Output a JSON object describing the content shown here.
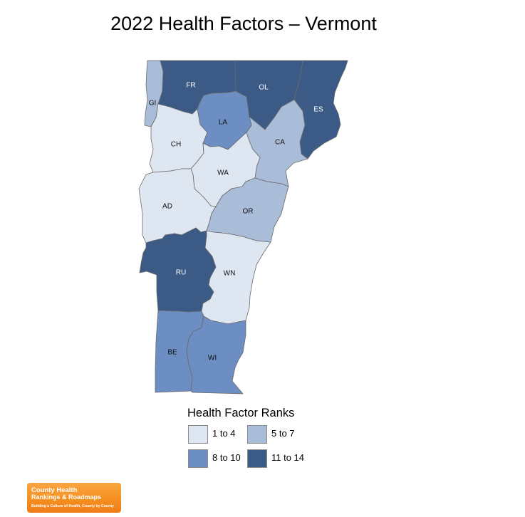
{
  "title": "2022 Health Factors – Vermont",
  "map": {
    "counties": [
      {
        "abbr": "GI",
        "color": "#a9bcd8"
      },
      {
        "abbr": "FR",
        "color": "#3b5a86"
      },
      {
        "abbr": "OL",
        "color": "#3b5a86"
      },
      {
        "abbr": "ES",
        "color": "#3b5a86"
      },
      {
        "abbr": "LA",
        "color": "#6c8ec2"
      },
      {
        "abbr": "CH",
        "color": "#dde6f1"
      },
      {
        "abbr": "CA",
        "color": "#a9bcd8"
      },
      {
        "abbr": "WA",
        "color": "#dde6f1"
      },
      {
        "abbr": "AD",
        "color": "#dde6f1"
      },
      {
        "abbr": "OR",
        "color": "#a9bcd8"
      },
      {
        "abbr": "RU",
        "color": "#3b5a86"
      },
      {
        "abbr": "WN",
        "color": "#dde6f1"
      },
      {
        "abbr": "BE",
        "color": "#6c8ec2"
      },
      {
        "abbr": "WI",
        "color": "#6c8ec2"
      }
    ]
  },
  "legend": {
    "title": "Health Factor Ranks",
    "items": [
      {
        "label": "1 to 4",
        "color": "#dde6f1"
      },
      {
        "label": "5 to 7",
        "color": "#a9bcd8"
      },
      {
        "label": "8 to 10",
        "color": "#6c8ec2"
      },
      {
        "label": "11 to 14",
        "color": "#3b5a86"
      }
    ]
  },
  "logo": {
    "line1": "County Health",
    "line2": "Rankings & Roadmaps",
    "tagline": "Building a Culture of Health, County by County"
  }
}
